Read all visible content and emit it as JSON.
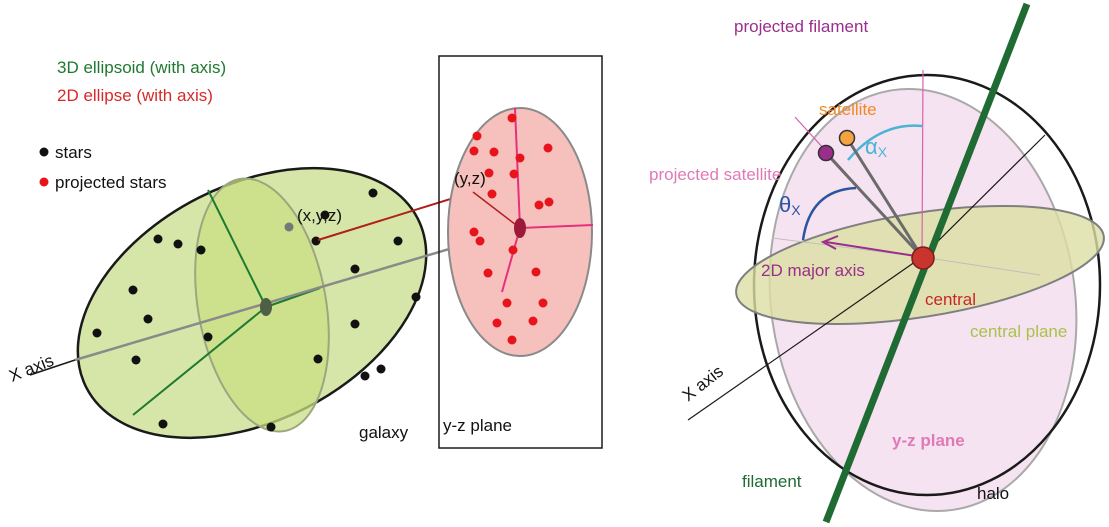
{
  "left_panel": {
    "legend": {
      "ellipsoid_label": "3D ellipsoid (with axis)",
      "ellipse_label": "2D ellipse (with axis)",
      "stars_label": "stars",
      "projected_stars_label": "projected stars"
    },
    "point_label_3d": "(x,y,z)",
    "point_label_2d": "(y,z)",
    "x_axis_label": "X axis",
    "galaxy_label": "galaxy",
    "plane_label": "y-z plane"
  },
  "right_panel": {
    "projected_filament_label": "projected filament",
    "satellite_label": "satellite",
    "alpha_label": "α",
    "alpha_sub": "X",
    "projected_satellite_label": "projected satellite",
    "theta_label": "θ",
    "theta_sub": "X",
    "major_axis_label": "2D major axis",
    "central_label": "central",
    "central_plane_label": "central plane",
    "x_axis_label": "X axis",
    "yz_plane_label": "y-z plane",
    "filament_label": "filament",
    "halo_label": "halo"
  },
  "colors": {
    "ellipsoid_green": "#1e7a30",
    "ellipse_red": "#d62a2a",
    "galaxy_fill": "#d6e6a8",
    "ellipse_fill": "#f6c1bd",
    "filament": "#1f6b33",
    "projected": "#9b2d8c",
    "satellite": "#f4a340",
    "alpha": "#4ab3d6",
    "theta": "#2a56a0",
    "central_plane": "#b6cc5a",
    "yz_plane": "#f3d9ec"
  }
}
